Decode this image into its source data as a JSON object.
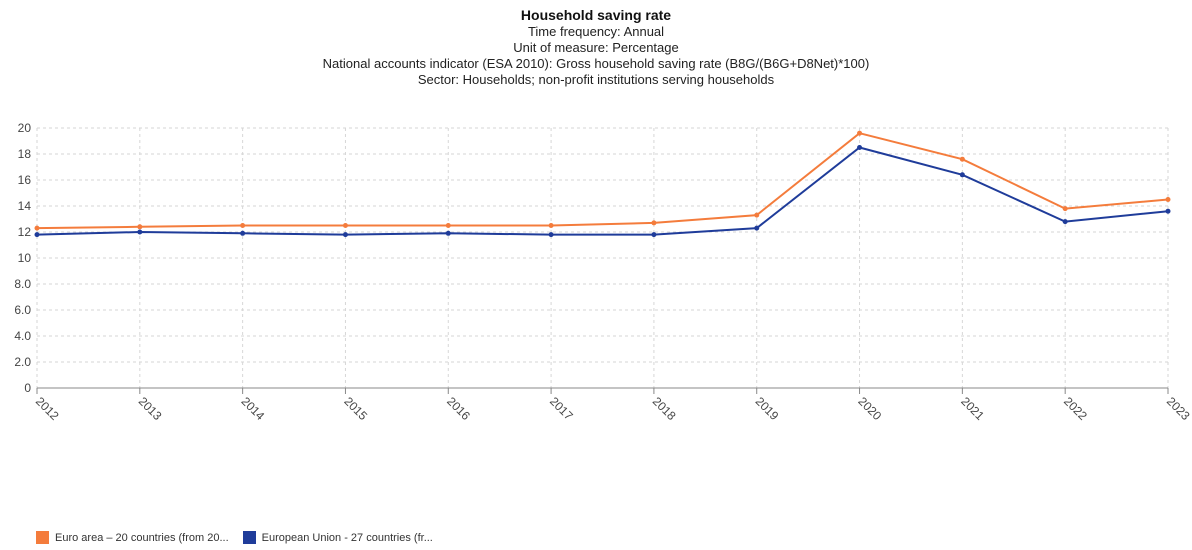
{
  "chart_data": {
    "type": "line",
    "title": "Household saving rate",
    "subtitles": [
      "Time frequency: Annual",
      "Unit of measure: Percentage",
      "National accounts indicator (ESA 2010): Gross household saving rate (B8G/(B6G+D8Net)*100)",
      "Sector: Households; non-profit institutions serving households"
    ],
    "categories": [
      "2012",
      "2013",
      "2014",
      "2015",
      "2016",
      "2017",
      "2018",
      "2019",
      "2020",
      "2021",
      "2022",
      "2023"
    ],
    "ylim": [
      0,
      20
    ],
    "yticks": [
      "0",
      "2.0",
      "4.0",
      "6.0",
      "8.0",
      "10",
      "12",
      "14",
      "16",
      "18",
      "20"
    ],
    "grid": true,
    "legend_position": "bottom-left",
    "series": [
      {
        "name": "Euro area – 20 countries (from 20...",
        "color": "#f47c3c",
        "values": [
          12.3,
          12.4,
          12.5,
          12.5,
          12.5,
          12.5,
          12.7,
          13.3,
          19.6,
          17.6,
          13.8,
          14.5
        ]
      },
      {
        "name": "European Union - 27 countries (fr...",
        "color": "#1f3c9a",
        "values": [
          11.8,
          12.0,
          11.9,
          11.8,
          11.9,
          11.8,
          11.8,
          12.3,
          18.5,
          16.4,
          12.8,
          13.6
        ]
      }
    ]
  }
}
